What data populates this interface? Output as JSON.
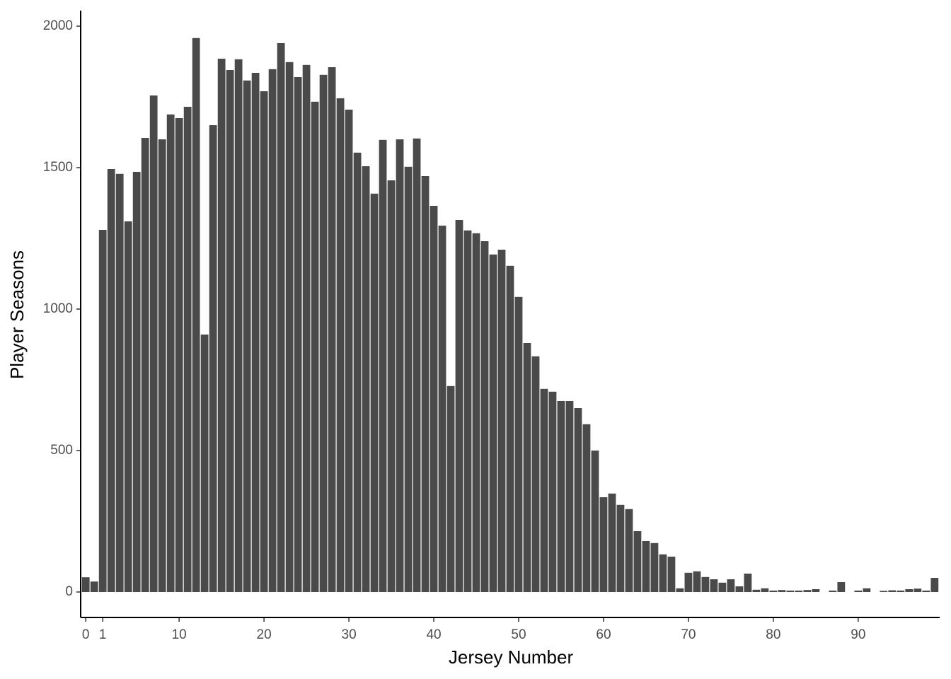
{
  "chart_data": {
    "type": "bar",
    "x_label": "Jersey Number",
    "y_label": "Player Seasons",
    "color": "#4a4a4a",
    "categories": [
      "0",
      null,
      "1",
      null,
      null,
      null,
      null,
      null,
      null,
      null,
      null,
      "10",
      null,
      null,
      null,
      null,
      null,
      null,
      null,
      null,
      null,
      "20",
      null,
      null,
      null,
      null,
      null,
      null,
      null,
      null,
      null,
      "30",
      null,
      null,
      null,
      null,
      null,
      null,
      null,
      null,
      null,
      "40",
      null,
      null,
      null,
      null,
      null,
      null,
      null,
      null,
      null,
      "50",
      null,
      null,
      null,
      null,
      null,
      null,
      null,
      null,
      null,
      "60",
      null,
      null,
      null,
      null,
      null,
      null,
      null,
      null,
      null,
      "70",
      null,
      null,
      null,
      null,
      null,
      null,
      null,
      null,
      null,
      "80",
      null,
      null,
      null,
      null,
      null,
      null,
      null,
      null,
      null,
      "90",
      null,
      null,
      null,
      null,
      null,
      null,
      null,
      null,
      null
    ],
    "values": [
      52,
      37,
      1280,
      1495,
      1478,
      1310,
      1485,
      1605,
      1755,
      1600,
      1688,
      1675,
      1715,
      1958,
      910,
      1650,
      1885,
      1845,
      1883,
      1808,
      1835,
      1770,
      1848,
      1940,
      1873,
      1820,
      1863,
      1733,
      1828,
      1855,
      1745,
      1705,
      1553,
      1505,
      1408,
      1598,
      1455,
      1600,
      1503,
      1603,
      1470,
      1365,
      1295,
      728,
      1315,
      1278,
      1268,
      1240,
      1193,
      1210,
      1153,
      1043,
      880,
      833,
      718,
      708,
      675,
      675,
      650,
      593,
      500,
      335,
      348,
      308,
      293,
      215,
      180,
      173,
      133,
      125,
      13,
      68,
      73,
      53,
      45,
      33,
      45,
      20,
      65,
      8,
      13,
      5,
      7,
      5,
      5,
      7,
      10,
      0,
      5,
      35,
      0,
      5,
      13,
      0,
      4,
      6,
      5,
      10,
      12,
      5,
      50
    ],
    "ylim": [
      -90,
      2055
    ],
    "yticks": [
      0,
      500,
      1000,
      1500,
      2000
    ],
    "grid": false
  }
}
